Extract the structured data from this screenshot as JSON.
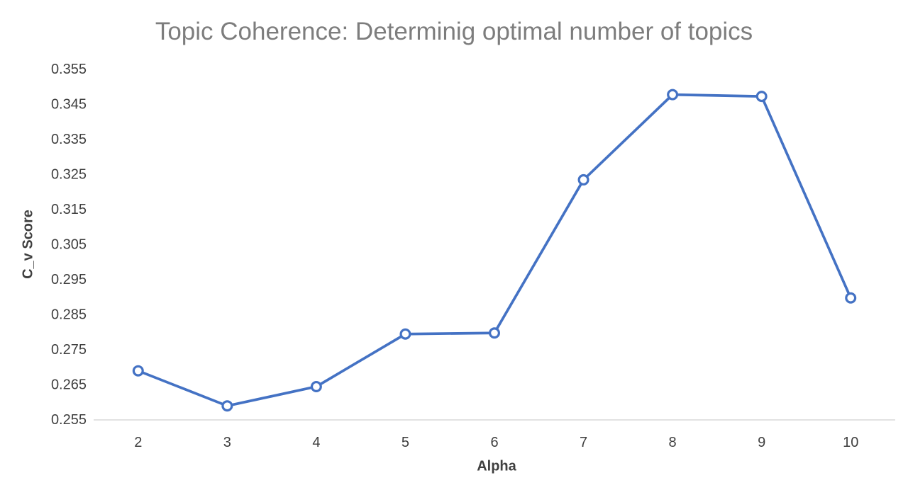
{
  "chart_data": {
    "type": "line",
    "title": "Topic Coherence: Determinig optimal number of topics",
    "xlabel": "Alpha",
    "ylabel": "C_v Score",
    "categories": [
      "2",
      "3",
      "4",
      "5",
      "6",
      "7",
      "8",
      "9",
      "10"
    ],
    "values": [
      0.269,
      0.259,
      0.2645,
      0.2795,
      0.2798,
      0.3235,
      0.3478,
      0.3473,
      0.2898
    ],
    "ylim": [
      0.255,
      0.355
    ],
    "ytick_step": 0.01,
    "ytick_labels": [
      "0.255",
      "0.265",
      "0.275",
      "0.285",
      "0.295",
      "0.305",
      "0.315",
      "0.325",
      "0.335",
      "0.345",
      "0.355"
    ],
    "grid": "off",
    "legend": "none",
    "marker": "open-circle",
    "colors": {
      "line": "#4472C4",
      "marker_fill": "#FFFFFF",
      "axis_line": "#D9D9D9",
      "title_text": "#7D7D7D",
      "tick_text": "#3F3F3F",
      "axis_title_text": "#3F3F3F",
      "background": "#FFFFFF"
    }
  }
}
